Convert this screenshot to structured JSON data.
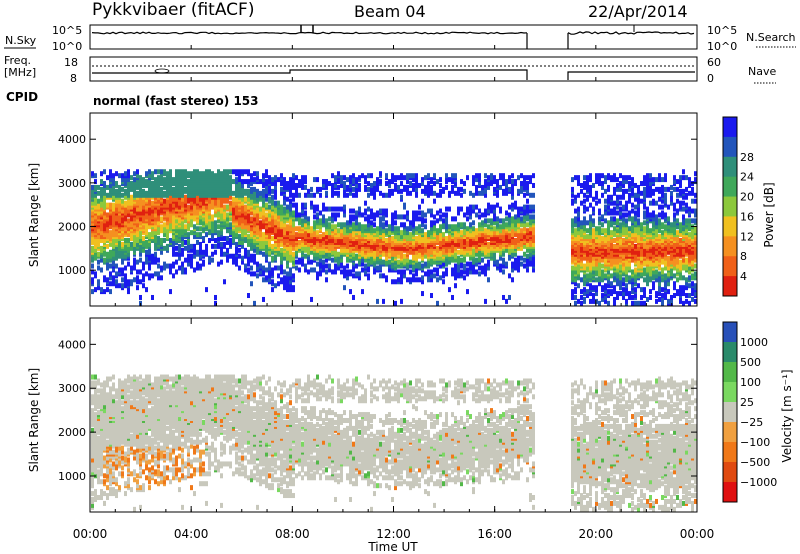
{
  "header": {
    "station": "Pykkvibaer (fitACF)",
    "beam": "Beam 04",
    "date": "22/Apr/2014"
  },
  "top_panels": {
    "nsky_label": "N.Sky",
    "nsky_ticks": [
      "10^5",
      "10^0"
    ],
    "nsearch_label": "N.Search",
    "nsearch_ticks": [
      "10^5",
      "10^0"
    ],
    "freq_label_line1": "Freq.",
    "freq_label_line2": "[MHz]",
    "freq_ticks": [
      "18",
      "8"
    ],
    "nave_label": "Nave",
    "nave_ticks": [
      "60",
      "0"
    ],
    "cpid_label": "CPID",
    "cpid_value": "normal (fast stereo) 153"
  },
  "chart_data": [
    {
      "type": "heatmap",
      "parameter": "power",
      "ylabel": "Slant Range [km]",
      "ylim": [
        180,
        4600
      ],
      "yticks": [
        "1000",
        "2000",
        "3000",
        "4000"
      ],
      "x_range_hours": [
        0,
        24
      ],
      "data_gap_hours": [
        17.5,
        19.0
      ],
      "colorbar": {
        "label": "Power [dB]",
        "ticks": [
          "4",
          "8",
          "12",
          "16",
          "20",
          "24",
          "28"
        ],
        "colors": [
          "#1a1aee",
          "#2255bb",
          "#2f8f7a",
          "#3fa85a",
          "#8cc83c",
          "#f0c020",
          "#f59020",
          "#f06018",
          "#e02010"
        ]
      }
    },
    {
      "type": "heatmap",
      "parameter": "velocity",
      "ylabel": "Slant Range [km]",
      "ylim": [
        180,
        4600
      ],
      "yticks": [
        "1000",
        "2000",
        "3000",
        "4000"
      ],
      "x_range_hours": [
        0,
        24
      ],
      "colorbar": {
        "label": "Velocity [m s⁻¹]",
        "ticks": [
          "1000",
          "500",
          "100",
          "25",
          "−25",
          "−100",
          "−500",
          "−1000"
        ],
        "colors": [
          "#2850b8",
          "#2a8a6a",
          "#52b848",
          "#7ad860",
          "#c8c8bc",
          "#f0a040",
          "#f07818",
          "#e04a10",
          "#e01010"
        ]
      }
    }
  ],
  "xaxis": {
    "ticks": [
      "00:00",
      "04:00",
      "08:00",
      "12:00",
      "16:00",
      "20:00",
      "00:00"
    ],
    "label": "Time UT"
  }
}
